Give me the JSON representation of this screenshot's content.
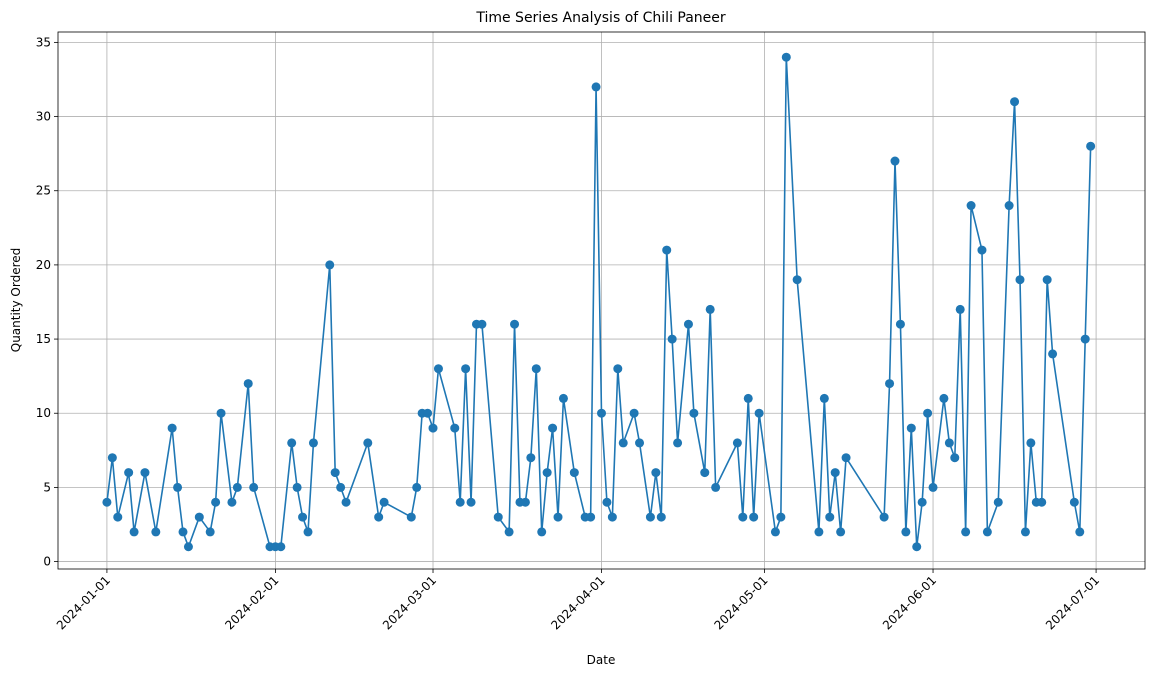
{
  "chart_data": {
    "type": "line",
    "title": "Time Series Analysis of Chili Paneer",
    "xlabel": "Date",
    "ylabel": "Quantity Ordered",
    "x": [
      "2024-01-01",
      "2024-01-02",
      "2024-01-03",
      "2024-01-05",
      "2024-01-06",
      "2024-01-08",
      "2024-01-10",
      "2024-01-13",
      "2024-01-14",
      "2024-01-15",
      "2024-01-16",
      "2024-01-18",
      "2024-01-20",
      "2024-01-21",
      "2024-01-22",
      "2024-01-24",
      "2024-01-25",
      "2024-01-27",
      "2024-01-28",
      "2024-01-31",
      "2024-02-01",
      "2024-02-02",
      "2024-02-04",
      "2024-02-05",
      "2024-02-06",
      "2024-02-07",
      "2024-02-08",
      "2024-02-11",
      "2024-02-12",
      "2024-02-13",
      "2024-02-14",
      "2024-02-18",
      "2024-02-20",
      "2024-02-21",
      "2024-02-26",
      "2024-02-27",
      "2024-02-28",
      "2024-02-29",
      "2024-03-01",
      "2024-03-02",
      "2024-03-05",
      "2024-03-06",
      "2024-03-07",
      "2024-03-08",
      "2024-03-09",
      "2024-03-10",
      "2024-03-13",
      "2024-03-15",
      "2024-03-16",
      "2024-03-17",
      "2024-03-18",
      "2024-03-19",
      "2024-03-20",
      "2024-03-21",
      "2024-03-22",
      "2024-03-23",
      "2024-03-24",
      "2024-03-25",
      "2024-03-27",
      "2024-03-29",
      "2024-03-30",
      "2024-03-31",
      "2024-04-01",
      "2024-04-02",
      "2024-04-03",
      "2024-04-04",
      "2024-04-05",
      "2024-04-07",
      "2024-04-08",
      "2024-04-10",
      "2024-04-11",
      "2024-04-12",
      "2024-04-13",
      "2024-04-14",
      "2024-04-15",
      "2024-04-17",
      "2024-04-18",
      "2024-04-20",
      "2024-04-21",
      "2024-04-22",
      "2024-04-26",
      "2024-04-27",
      "2024-04-28",
      "2024-04-29",
      "2024-04-30",
      "2024-05-03",
      "2024-05-04",
      "2024-05-05",
      "2024-05-07",
      "2024-05-11",
      "2024-05-12",
      "2024-05-13",
      "2024-05-14",
      "2024-05-15",
      "2024-05-16",
      "2024-05-23",
      "2024-05-24",
      "2024-05-25",
      "2024-05-26",
      "2024-05-27",
      "2024-05-28",
      "2024-05-29",
      "2024-05-30",
      "2024-05-31",
      "2024-06-01",
      "2024-06-03",
      "2024-06-04",
      "2024-06-05",
      "2024-06-06",
      "2024-06-07",
      "2024-06-08",
      "2024-06-10",
      "2024-06-11",
      "2024-06-13",
      "2024-06-15",
      "2024-06-16",
      "2024-06-17",
      "2024-06-18",
      "2024-06-19",
      "2024-06-20",
      "2024-06-21",
      "2024-06-22",
      "2024-06-23",
      "2024-06-27",
      "2024-06-28",
      "2024-06-29",
      "2024-06-30"
    ],
    "series": [
      {
        "name": "Chili Paneer",
        "color": "#1f77b4",
        "values": [
          4,
          7,
          3,
          6,
          2,
          6,
          2,
          9,
          5,
          2,
          1,
          3,
          2,
          4,
          10,
          4,
          5,
          12,
          5,
          1,
          1,
          1,
          8,
          5,
          3,
          2,
          8,
          20,
          6,
          5,
          4,
          8,
          3,
          4,
          3,
          5,
          10,
          10,
          9,
          13,
          9,
          4,
          13,
          4,
          16,
          16,
          3,
          2,
          16,
          4,
          4,
          7,
          13,
          2,
          6,
          9,
          3,
          11,
          6,
          3,
          3,
          32,
          10,
          4,
          3,
          13,
          8,
          10,
          8,
          3,
          6,
          3,
          21,
          15,
          8,
          16,
          10,
          6,
          17,
          5,
          8,
          3,
          11,
          3,
          10,
          2,
          3,
          34,
          19,
          2,
          11,
          3,
          6,
          2,
          7,
          3,
          12,
          27,
          16,
          2,
          9,
          1,
          4,
          10,
          5,
          11,
          8,
          7,
          17,
          2,
          24,
          21,
          2,
          4,
          24,
          31,
          19,
          2,
          8,
          4,
          4,
          19,
          14,
          4,
          2,
          15,
          28
        ]
      }
    ],
    "xlim": [
      "2023-12-23",
      "2024-07-10"
    ],
    "xticks": [
      "2024-01-01",
      "2024-02-01",
      "2024-03-01",
      "2024-04-01",
      "2024-05-01",
      "2024-06-01",
      "2024-07-01"
    ],
    "ylim": [
      -0.5,
      35.7
    ],
    "yticks": [
      0,
      5,
      10,
      15,
      20,
      25,
      30,
      35
    ],
    "grid": true
  }
}
